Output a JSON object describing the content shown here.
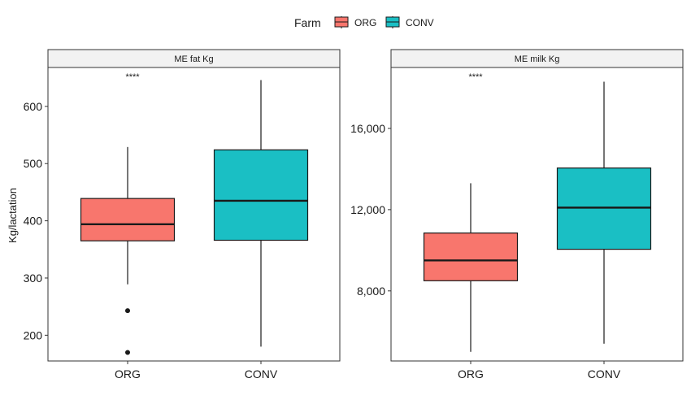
{
  "legend": {
    "title": "Farm",
    "items": [
      {
        "label": "ORG",
        "color": "#F8766D"
      },
      {
        "label": "CONV",
        "color": "#1ABFC4"
      }
    ]
  },
  "chart_data": [
    {
      "type": "boxplot",
      "title": "ME fat Kg",
      "ylabel": "Kg/lactation",
      "ylim": [
        155,
        668
      ],
      "yticks": [
        200,
        300,
        400,
        500,
        600
      ],
      "ytick_labels": [
        "200",
        "300",
        "400",
        "500",
        "600"
      ],
      "categories": [
        "ORG",
        "CONV"
      ],
      "significance": "****",
      "boxes": [
        {
          "group": "ORG",
          "color": "#F8766D",
          "whisker_low": 289,
          "q1": 365,
          "median": 394,
          "q3": 439,
          "whisker_high": 529,
          "outliers": [
            243,
            170
          ]
        },
        {
          "group": "CONV",
          "color": "#1ABFC4",
          "whisker_low": 180,
          "q1": 366,
          "median": 435,
          "q3": 524,
          "whisker_high": 646,
          "outliers": []
        }
      ]
    },
    {
      "type": "boxplot",
      "title": "ME milk Kg",
      "ylabel": "",
      "ylim": [
        4550,
        19000
      ],
      "yticks": [
        8000,
        12000,
        16000
      ],
      "ytick_labels": [
        "8,000",
        "12,000",
        "16,000"
      ],
      "categories": [
        "ORG",
        "CONV"
      ],
      "significance": "****",
      "boxes": [
        {
          "group": "ORG",
          "color": "#F8766D",
          "whisker_low": 5000,
          "q1": 8500,
          "median": 9500,
          "q3": 10850,
          "whisker_high": 13300,
          "outliers": []
        },
        {
          "group": "CONV",
          "color": "#1ABFC4",
          "whisker_low": 5400,
          "q1": 10050,
          "median": 12100,
          "q3": 14050,
          "whisker_high": 18300,
          "outliers": []
        }
      ]
    }
  ]
}
